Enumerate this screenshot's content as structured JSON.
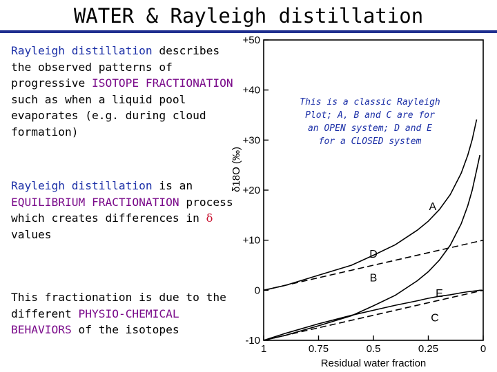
{
  "title": "WATER & Rayleigh distillation",
  "para1": {
    "term": "Rayleigh distillation",
    "text1": " describes the observed patterns of progressive ",
    "emph": "ISOTOPE FRACTIONATION",
    "text2": " such as when a liquid pool evaporates (e.g. during cloud formation)"
  },
  "para2": {
    "term": "Rayleigh distillation",
    "text1": " is an ",
    "emph": "EQUILIBRIUM FRACTIONATION",
    "text2": " process which creates differences in ",
    "symbol": "δ",
    "text3": " values"
  },
  "para3": {
    "text1": "This fractionation is due to the different ",
    "emph": "PHYSIO-CHEMICAL BEHAVIORS",
    "text2": " of the isotopes"
  },
  "note": {
    "lines": [
      "This is a classic Rayleigh",
      "Plot; A, B and C are for",
      "an OPEN system; D and E",
      "for a CLOSED system"
    ]
  },
  "chart_data": {
    "type": "line",
    "xlabel": "Residual water fraction",
    "ylabel": "δ18O (‰)",
    "x_ticks": [
      "1",
      "0.75",
      "0.5",
      "0.25",
      "0"
    ],
    "y_ticks": [
      "+50",
      "+40",
      "+30",
      "+20",
      "+10",
      "0",
      "-10"
    ],
    "xlim": [
      1,
      0
    ],
    "ylim": [
      -10,
      50
    ],
    "series": [
      {
        "name": "A",
        "style": "solid",
        "x": [
          1,
          0.9,
          0.75,
          0.6,
          0.5,
          0.4,
          0.3,
          0.25,
          0.2,
          0.15,
          0.1,
          0.07,
          0.05,
          0.03
        ],
        "y": [
          0,
          1,
          3,
          5,
          7,
          9.1,
          12,
          13.8,
          16.1,
          19.1,
          23.4,
          27,
          30.1,
          34.1
        ]
      },
      {
        "name": "B",
        "style": "solid",
        "x": [
          1,
          0.9,
          0.75,
          0.6,
          0.5,
          0.4,
          0.3,
          0.25,
          0.2,
          0.15,
          0.1,
          0.07,
          0.05,
          0.03,
          0.015
        ],
        "y": [
          -10,
          -9,
          -7.1,
          -5.1,
          -3.1,
          -1,
          1.9,
          3.7,
          6,
          9,
          13.3,
          16.9,
          20,
          24,
          27
        ]
      },
      {
        "name": "C",
        "style": "solid",
        "x": [
          1,
          0.9,
          0.75,
          0.6,
          0.5,
          0.4,
          0.3,
          0.25,
          0.2,
          0.15,
          0.1,
          0.07,
          0.05,
          0.03,
          0.015,
          0.005
        ],
        "y": [
          -10,
          -8.6,
          -6.7,
          -5,
          -4,
          -3,
          -2.1,
          -1.6,
          -1.2,
          -0.9,
          -0.5,
          -0.3,
          -0.2,
          -0.1,
          0,
          0
        ]
      },
      {
        "name": "D",
        "style": "dashed",
        "x": [
          1,
          0
        ],
        "y": [
          0,
          10
        ]
      },
      {
        "name": "E",
        "style": "dashed",
        "x": [
          1,
          0
        ],
        "y": [
          -10,
          0
        ]
      }
    ],
    "annotations": [
      {
        "text": "A",
        "x": 0.23,
        "y": 16
      },
      {
        "text": "D",
        "x": 0.5,
        "y": 6.5
      },
      {
        "text": "B",
        "x": 0.5,
        "y": 1.8
      },
      {
        "text": "E",
        "x": 0.2,
        "y": -1.3
      },
      {
        "text": "C",
        "x": 0.22,
        "y": -6.2
      }
    ]
  }
}
